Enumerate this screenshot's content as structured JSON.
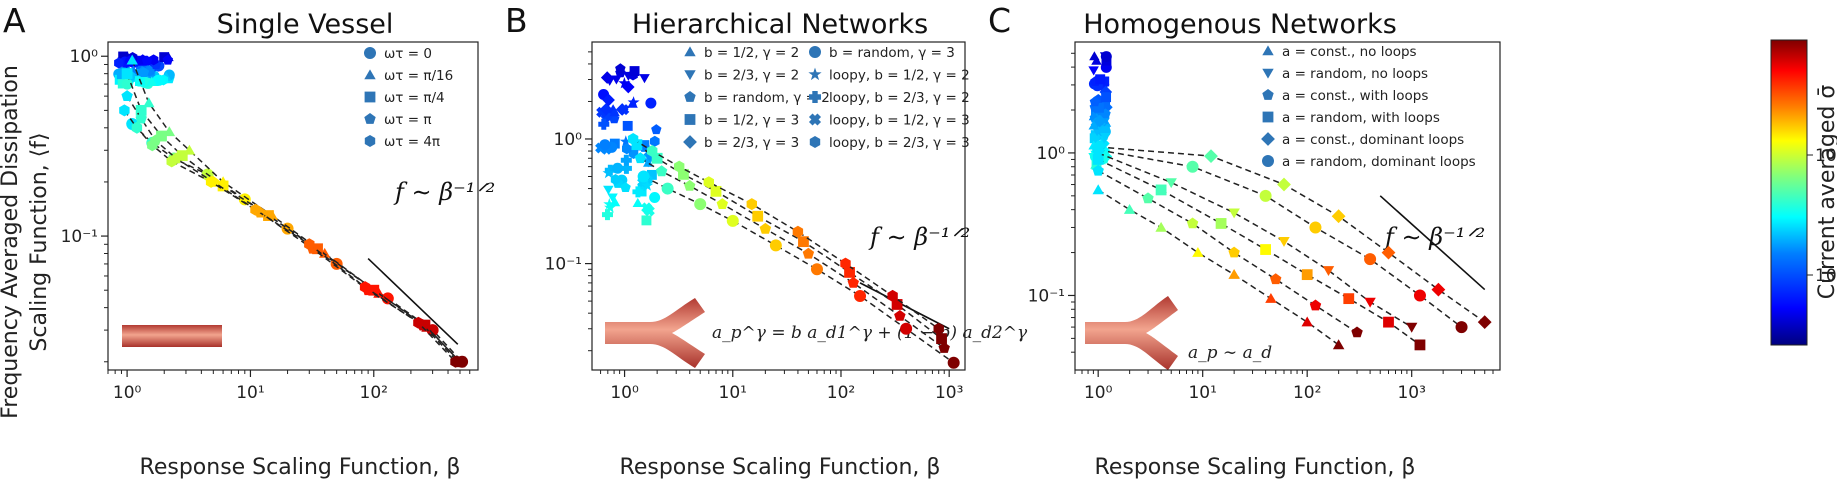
{
  "figure": {
    "shared_ylabel_line1": "Frequency Averaged Dissipation",
    "shared_ylabel_line2": "Scaling Function, ⟨f⟩",
    "colorbar_label": "Current averaged σ̄",
    "colorbar_ticks": [
      "10⁰",
      "10¹"
    ],
    "colormap": [
      "#00007f",
      "#0000ff",
      "#007fff",
      "#00ffff",
      "#7fff7f",
      "#ffff00",
      "#ff7f00",
      "#ff0000",
      "#7f0000"
    ],
    "line_color": "#222222"
  },
  "chart_data": [
    {
      "type": "scatter",
      "letter": "A",
      "title": "Single Vessel",
      "xlabel": "Response Scaling Function, β",
      "xscale": "log",
      "yscale": "log",
      "xlim": [
        0.7,
        700
      ],
      "ylim": [
        0.018,
        1.2
      ],
      "xticks": [
        "10⁰",
        "10¹",
        "10²"
      ],
      "yticks": [
        "10⁻¹",
        "10⁰"
      ],
      "ytick_values": [
        0.1,
        1
      ],
      "xtick_values": [
        1,
        10,
        100
      ],
      "law": "f ∼ β⁻¹ᐟ²",
      "law_line": [
        [
          90,
          0.075
        ],
        [
          480,
          0.025
        ]
      ],
      "legend_position": "top-right",
      "legend": [
        {
          "marker": "circle",
          "label": "ωτ = 0"
        },
        {
          "marker": "triangle-up",
          "label": "ωτ = π/16"
        },
        {
          "marker": "square",
          "label": "ωτ = π/4"
        },
        {
          "marker": "pentagon",
          "label": "ωτ = π"
        },
        {
          "marker": "hexagon",
          "label": "ωτ = 4π"
        }
      ],
      "inset": "straight-vessel",
      "series": [
        {
          "marker": "circle",
          "x": [
            1.1,
            1.6,
            2.4,
            4.5,
            9,
            20,
            50,
            130,
            300,
            520
          ],
          "y": [
            0.42,
            0.33,
            0.27,
            0.22,
            0.16,
            0.11,
            0.07,
            0.045,
            0.03,
            0.02
          ]
        },
        {
          "marker": "triangle-up",
          "x": [
            1.1,
            1.5,
            2.2,
            3.2,
            6,
            15,
            40,
            110,
            270,
            500
          ],
          "y": [
            0.95,
            0.55,
            0.38,
            0.3,
            0.2,
            0.13,
            0.08,
            0.048,
            0.031,
            0.02
          ]
        },
        {
          "marker": "square",
          "x": [
            1.0,
            1.3,
            1.9,
            2.8,
            6,
            14,
            35,
            100,
            260,
            500
          ],
          "y": [
            0.8,
            0.5,
            0.36,
            0.28,
            0.19,
            0.13,
            0.085,
            0.05,
            0.032,
            0.02
          ]
        },
        {
          "marker": "pentagon",
          "x": [
            1.0,
            1.3,
            1.7,
            2.5,
            5,
            12,
            32,
            90,
            250,
            480
          ],
          "y": [
            0.6,
            0.45,
            0.34,
            0.27,
            0.2,
            0.135,
            0.085,
            0.05,
            0.032,
            0.02
          ]
        },
        {
          "marker": "hexagon",
          "x": [
            0.95,
            1.2,
            1.6,
            2.3,
            4.8,
            11,
            30,
            85,
            230,
            460
          ],
          "y": [
            0.5,
            0.4,
            0.32,
            0.26,
            0.2,
            0.14,
            0.09,
            0.052,
            0.033,
            0.02
          ]
        }
      ],
      "cluster": {
        "x": [
          0.85,
          2.3
        ],
        "y": [
          0.7,
          1.0
        ]
      }
    },
    {
      "type": "scatter",
      "letter": "B",
      "title": "Hierarchical Networks",
      "xlabel": "Response Scaling Function, β",
      "xscale": "log",
      "yscale": "log",
      "xlim": [
        0.5,
        1400
      ],
      "ylim": [
        0.014,
        6
      ],
      "xticks": [
        "10⁰",
        "10¹",
        "10²",
        "10³"
      ],
      "yticks": [
        "10⁻¹",
        "10⁰"
      ],
      "ytick_values": [
        0.1,
        1
      ],
      "xtick_values": [
        1,
        10,
        100,
        1000
      ],
      "law": "f ∼ β⁻¹ᐟ²",
      "law_line": [
        [
          150,
          0.07
        ],
        [
          1000,
          0.03
        ]
      ],
      "legend_position": "top-center",
      "legend": [
        {
          "marker": "triangle-up",
          "label": "b = 1/2, γ = 2"
        },
        {
          "marker": "triangle-down",
          "label": "b = 2/3, γ = 2"
        },
        {
          "marker": "pentagon",
          "label": "b = random, γ = 2"
        },
        {
          "marker": "square",
          "label": "b = 1/2, γ = 3"
        },
        {
          "marker": "diamond",
          "label": "b = 2/3, γ = 3"
        },
        {
          "marker": "circle",
          "label": "b = random, γ = 3"
        },
        {
          "marker": "star",
          "label": "loopy, b = 1/2, γ = 2"
        },
        {
          "marker": "plus",
          "label": "loopy, b = 2/3, γ = 2"
        },
        {
          "marker": "cross",
          "label": "loopy, b = 1/2, γ = 3"
        },
        {
          "marker": "hexagon",
          "label": "loopy, b = 2/3, γ = 3"
        }
      ],
      "formula": "a_p^γ = b a_d1^γ + (1 − b) a_d2^γ",
      "inset": "bifurcating-vessel",
      "series": [
        {
          "marker": "circle",
          "x": [
            1.5,
            2.5,
            5,
            10,
            25,
            60,
            150,
            400,
            1100
          ],
          "y": [
            0.5,
            0.4,
            0.3,
            0.22,
            0.14,
            0.09,
            0.055,
            0.03,
            0.016
          ]
        },
        {
          "marker": "pentagon",
          "x": [
            1.4,
            2.2,
            4,
            8,
            20,
            50,
            130,
            350,
            900
          ],
          "y": [
            0.7,
            0.55,
            0.42,
            0.3,
            0.19,
            0.12,
            0.07,
            0.038,
            0.021
          ]
        },
        {
          "marker": "square",
          "x": [
            1.3,
            2,
            3.5,
            7,
            17,
            45,
            120,
            330,
            850
          ],
          "y": [
            0.9,
            0.7,
            0.52,
            0.38,
            0.24,
            0.15,
            0.085,
            0.047,
            0.025
          ]
        },
        {
          "marker": "hexagon",
          "x": [
            1.2,
            1.8,
            3.2,
            6,
            15,
            40,
            110,
            300,
            800
          ],
          "y": [
            1.0,
            0.8,
            0.6,
            0.45,
            0.3,
            0.18,
            0.1,
            0.055,
            0.03
          ]
        }
      ],
      "cluster": {
        "x": [
          0.6,
          2.0
        ],
        "y": [
          0.22,
          4.0
        ]
      }
    },
    {
      "type": "scatter",
      "letter": "C",
      "title": "Homogenous Networks",
      "xlabel": "Response Scaling Function, β",
      "xscale": "log",
      "yscale": "log",
      "xlim": [
        0.6,
        7000
      ],
      "ylim": [
        0.03,
        6
      ],
      "xticks": [
        "10⁰",
        "10¹",
        "10²",
        "10³"
      ],
      "yticks": [
        "10⁻¹",
        "10⁰"
      ],
      "ytick_values": [
        0.1,
        1
      ],
      "xtick_values": [
        1,
        10,
        100,
        1000
      ],
      "law": "f ∼ β⁻¹ᐟ²",
      "law_line": [
        [
          500,
          0.5
        ],
        [
          5000,
          0.11
        ]
      ],
      "legend_position": "top-right",
      "legend": [
        {
          "marker": "triangle-up",
          "label": "a = const., no loops"
        },
        {
          "marker": "triangle-down",
          "label": "a = random, no loops"
        },
        {
          "marker": "pentagon",
          "label": "a = const., with loops"
        },
        {
          "marker": "square",
          "label": "a = random, with loops"
        },
        {
          "marker": "diamond",
          "label": "a = const., dominant loops"
        },
        {
          "marker": "circle",
          "label": "a = random, dominant loops"
        }
      ],
      "formula": "a_p ∼ a_d",
      "inset": "bifurcating-vessel",
      "series": [
        {
          "marker": "triangle-up",
          "x": [
            1.0,
            2,
            4,
            9,
            20,
            45,
            100,
            200
          ],
          "y": [
            0.55,
            0.4,
            0.3,
            0.2,
            0.14,
            0.095,
            0.065,
            0.045
          ]
        },
        {
          "marker": "pentagon",
          "x": [
            1.0,
            3,
            8,
            20,
            50,
            120,
            300
          ],
          "y": [
            0.75,
            0.48,
            0.32,
            0.2,
            0.13,
            0.085,
            0.055
          ]
        },
        {
          "marker": "square",
          "x": [
            1.0,
            4,
            15,
            40,
            100,
            250,
            600,
            1200
          ],
          "y": [
            0.9,
            0.55,
            0.32,
            0.21,
            0.14,
            0.095,
            0.065,
            0.045
          ]
        },
        {
          "marker": "triangle-down",
          "x": [
            1.0,
            5,
            20,
            60,
            160,
            400,
            1000
          ],
          "y": [
            1.0,
            0.62,
            0.38,
            0.24,
            0.15,
            0.09,
            0.06
          ]
        },
        {
          "marker": "circle",
          "x": [
            1.0,
            8,
            40,
            120,
            400,
            1200,
            3000
          ],
          "y": [
            1.05,
            0.8,
            0.5,
            0.3,
            0.18,
            0.1,
            0.06
          ]
        },
        {
          "marker": "diamond",
          "x": [
            1.0,
            12,
            60,
            200,
            600,
            1800,
            5000
          ],
          "y": [
            1.1,
            0.95,
            0.6,
            0.36,
            0.2,
            0.11,
            0.065
          ]
        }
      ],
      "cluster": {
        "x": [
          0.9,
          1.2
        ],
        "y": [
          0.8,
          5.0
        ]
      }
    }
  ]
}
